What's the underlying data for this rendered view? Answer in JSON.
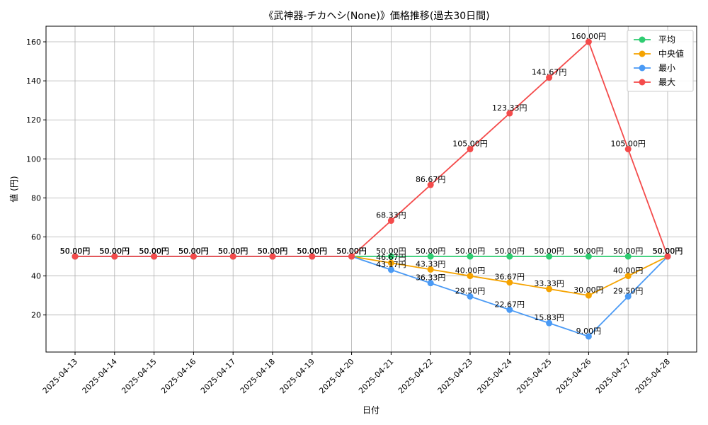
{
  "chart_data": {
    "type": "line",
    "title": "《武神器-チカヘシ(None)》価格推移(過去30日間)",
    "xlabel": "日付",
    "ylabel": "値 (円)",
    "ylim": [
      1,
      168
    ],
    "yticks": [
      20,
      40,
      60,
      80,
      100,
      120,
      140,
      160
    ],
    "grid": true,
    "legend_position": "top-right",
    "categories": [
      "2025-04-13",
      "2025-04-14",
      "2025-04-15",
      "2025-04-16",
      "2025-04-17",
      "2025-04-18",
      "2025-04-19",
      "2025-04-20",
      "2025-04-21",
      "2025-04-22",
      "2025-04-23",
      "2025-04-24",
      "2025-04-25",
      "2025-04-26",
      "2025-04-27",
      "2025-04-28"
    ],
    "series": [
      {
        "name": "平均",
        "color": "#2ecc71",
        "values": [
          50,
          50,
          50,
          50,
          50,
          50,
          50,
          50,
          50,
          50,
          50,
          50,
          50,
          50,
          50,
          50
        ],
        "labels": [
          "50.00円",
          "50.00円",
          "50.00円",
          "50.00円",
          "50.00円",
          "50.00円",
          "50.00円",
          "50.00円",
          "50.00円",
          "50.00円",
          "50.00円",
          "50.00円",
          "50.00円",
          "50.00円",
          "50.00円",
          "50.00円"
        ]
      },
      {
        "name": "中央値",
        "color": "#f5a300",
        "values": [
          50,
          50,
          50,
          50,
          50,
          50,
          50,
          50,
          46.67,
          43.33,
          40,
          36.67,
          33.33,
          30,
          40,
          50
        ],
        "labels": [
          "50.00円",
          "50.00円",
          "50.00円",
          "50.00円",
          "50.00円",
          "50.00円",
          "50.00円",
          "50.00円",
          "46.67円",
          "43.33円",
          "40.00円",
          "36.67円",
          "33.33円",
          "30.00円",
          "40.00円",
          "50.00円"
        ]
      },
      {
        "name": "最小",
        "color": "#4a9af5",
        "values": [
          50,
          50,
          50,
          50,
          50,
          50,
          50,
          50,
          43.17,
          36.33,
          29.5,
          22.67,
          15.83,
          9,
          29.5,
          50
        ],
        "labels": [
          "50.00円",
          "50.00円",
          "50.00円",
          "50.00円",
          "50.00円",
          "50.00円",
          "50.00円",
          "50.00円",
          "43.17円",
          "36.33円",
          "29.50円",
          "22.67円",
          "15.83円",
          "9.00円",
          "29.50円",
          "50.00円"
        ]
      },
      {
        "name": "最大",
        "color": "#f44b4b",
        "values": [
          50,
          50,
          50,
          50,
          50,
          50,
          50,
          50,
          68.33,
          86.67,
          105,
          123.33,
          141.67,
          160,
          105,
          50
        ],
        "labels": [
          "50.00円",
          "50.00円",
          "50.00円",
          "50.00円",
          "50.00円",
          "50.00円",
          "50.00円",
          "50.00円",
          "68.33円",
          "86.67円",
          "105.00円",
          "123.33円",
          "141.67円",
          "160.00円",
          "105.00円",
          "50.00円"
        ]
      }
    ]
  }
}
